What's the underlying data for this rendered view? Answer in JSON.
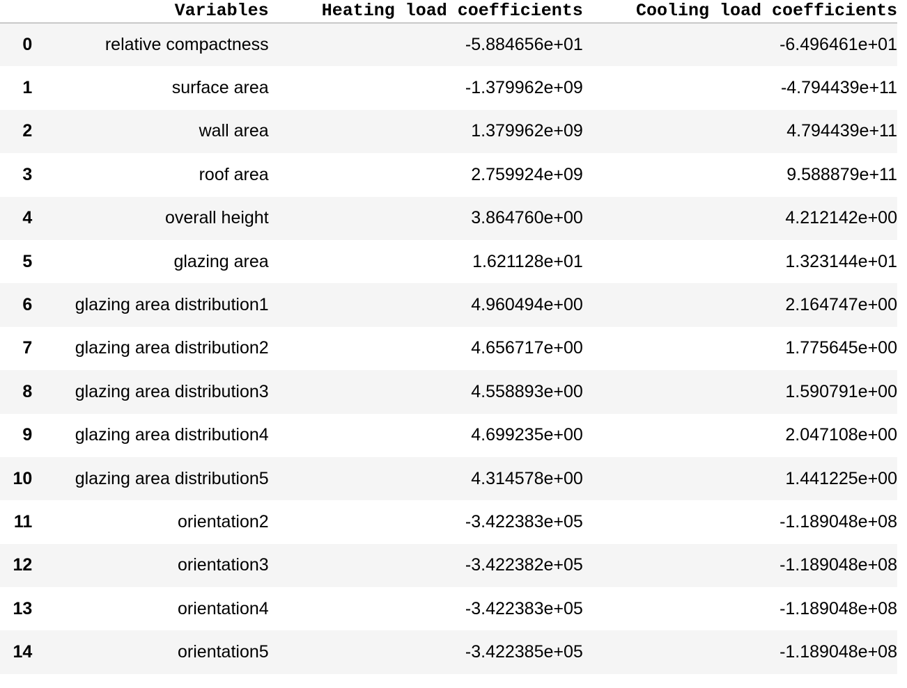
{
  "table": {
    "columns": [
      "",
      "Variables",
      "Heating load coefficients",
      "Cooling load coefficients"
    ],
    "rows": [
      {
        "index": "0",
        "variable": "relative compactness",
        "heating": "-5.884656e+01",
        "cooling": "-6.496461e+01"
      },
      {
        "index": "1",
        "variable": "surface area",
        "heating": "-1.379962e+09",
        "cooling": "-4.794439e+11"
      },
      {
        "index": "2",
        "variable": "wall area",
        "heating": "1.379962e+09",
        "cooling": "4.794439e+11"
      },
      {
        "index": "3",
        "variable": "roof area",
        "heating": "2.759924e+09",
        "cooling": "9.588879e+11"
      },
      {
        "index": "4",
        "variable": "overall height",
        "heating": "3.864760e+00",
        "cooling": "4.212142e+00"
      },
      {
        "index": "5",
        "variable": "glazing area",
        "heating": "1.621128e+01",
        "cooling": "1.323144e+01"
      },
      {
        "index": "6",
        "variable": "glazing area distribution1",
        "heating": "4.960494e+00",
        "cooling": "2.164747e+00"
      },
      {
        "index": "7",
        "variable": "glazing area distribution2",
        "heating": "4.656717e+00",
        "cooling": "1.775645e+00"
      },
      {
        "index": "8",
        "variable": "glazing area distribution3",
        "heating": "4.558893e+00",
        "cooling": "1.590791e+00"
      },
      {
        "index": "9",
        "variable": "glazing area distribution4",
        "heating": "4.699235e+00",
        "cooling": "2.047108e+00"
      },
      {
        "index": "10",
        "variable": "glazing area distribution5",
        "heating": "4.314578e+00",
        "cooling": "1.441225e+00"
      },
      {
        "index": "11",
        "variable": "orientation2",
        "heating": "-3.422383e+05",
        "cooling": "-1.189048e+08"
      },
      {
        "index": "12",
        "variable": "orientation3",
        "heating": "-3.422382e+05",
        "cooling": "-1.189048e+08"
      },
      {
        "index": "13",
        "variable": "orientation4",
        "heating": "-3.422383e+05",
        "cooling": "-1.189048e+08"
      },
      {
        "index": "14",
        "variable": "orientation5",
        "heating": "-3.422385e+05",
        "cooling": "-1.189048e+08"
      }
    ]
  },
  "colors": {
    "row_stripe": "#f5f5f5",
    "row_plain": "#ffffff",
    "header_border": "#c8c8c8",
    "text": "#000000"
  }
}
